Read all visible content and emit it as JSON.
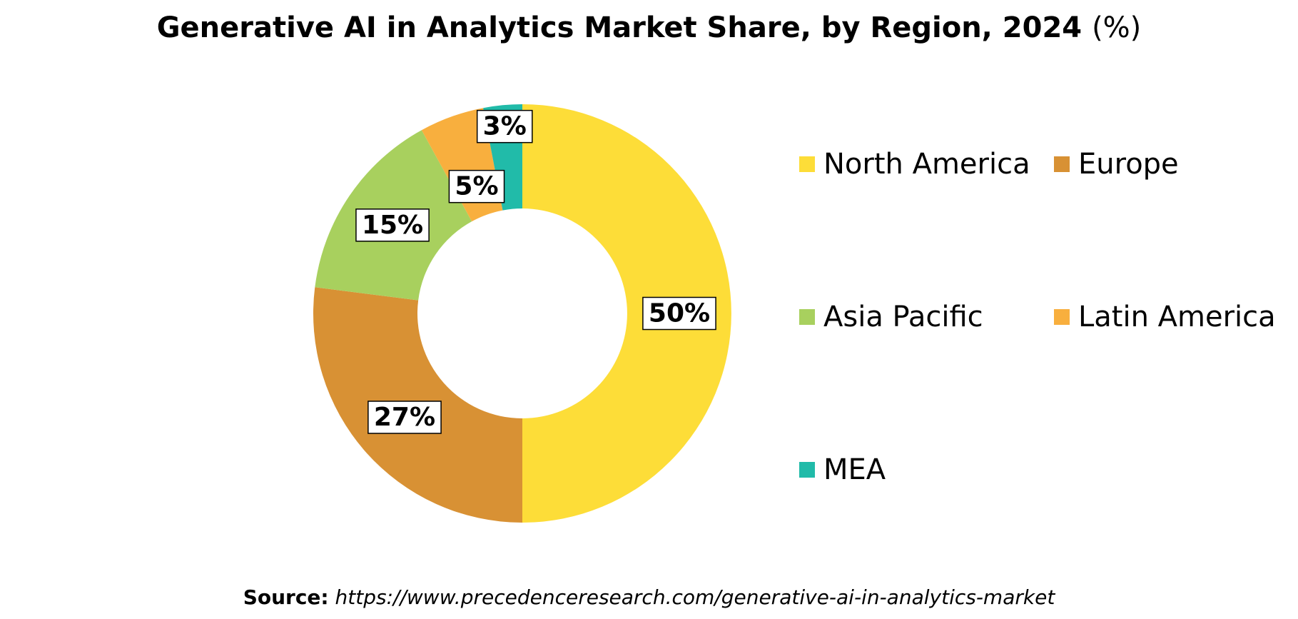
{
  "chart_data": {
    "type": "donut",
    "title": "Generative AI in Analytics Market Share, by Region, 2024",
    "title_unit": "(%)",
    "categories": [
      "North America",
      "Europe",
      "Asia Pacific",
      "Latin America",
      "MEA"
    ],
    "values": [
      50,
      27,
      15,
      5,
      3
    ],
    "data_labels": [
      "50%",
      "27%",
      "15%",
      "5%",
      "3%"
    ],
    "colors": [
      "#FDDD38",
      "#D89134",
      "#A8D05E",
      "#F8AF3E",
      "#21BBA9"
    ],
    "legend_position": "right",
    "legend": [
      {
        "label": "North America",
        "color": "#FDDD38"
      },
      {
        "label": "Europe",
        "color": "#D89134"
      },
      {
        "label": "Asia Pacific",
        "color": "#A8D05E"
      },
      {
        "label": "Latin America",
        "color": "#F8AF3E"
      },
      {
        "label": "MEA",
        "color": "#21BBA9"
      }
    ]
  },
  "source": {
    "label": "Source:",
    "url": "https://www.precedenceresearch.com/generative-ai-in-analytics-market"
  }
}
